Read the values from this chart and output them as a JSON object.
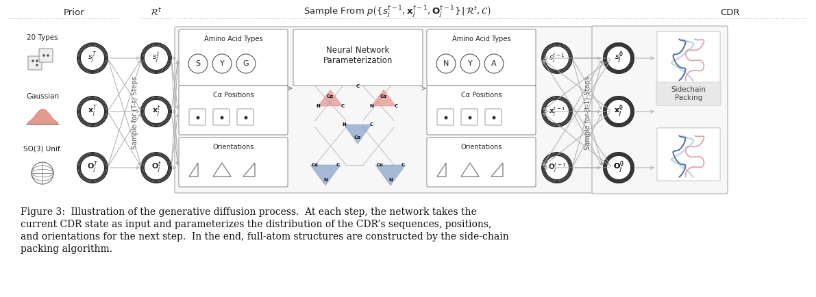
{
  "background_color": "#ffffff",
  "fig_width": 11.91,
  "fig_height": 4.34,
  "caption_line1": "Figure 3:  Illustration of the generative diffusion process.  At each step, the network takes the",
  "caption_line2": "current CDR state as input and parameterizes the distribution of the CDR’s sequences, positions,",
  "caption_line3": "and orientations for the next step.  In the end, full-atom structures are constructed by the side-chain",
  "caption_line4": "packing algorithm.",
  "title_prior": "Prior",
  "title_Rt": "$\\mathcal{R}^t$",
  "title_sample": "Sample From $p\\left(\\{s_j^{t-1},\\mathbf{x}_j^{t-1},\\mathbf{O}_j^{t-1}\\}\\,|\\,\\mathcal{R}^t,\\mathcal{C}\\right)$",
  "title_CDR": "CDR",
  "lbl_20types": "20 Types",
  "lbl_gaussian": "Gaussian",
  "lbl_so3": "SO(3) Unif.",
  "lbl_aa": "Amino Acid Types",
  "lbl_ca": "Cα Positions",
  "lbl_or": "Orientations",
  "lbl_nn": "Neural Network\nParameterization",
  "lbl_sc": "Sidechain\nPacking",
  "lbl_sampleTt": "Sample for (T-t) Steps",
  "lbl_samplet1": "Sample for (t-1) Steps",
  "col_red": "#e08080",
  "col_blue": "#7090c0",
  "col_dark": "#333333",
  "col_gray": "#888888",
  "col_lgray": "#bbbbbb",
  "col_text": "#222222"
}
